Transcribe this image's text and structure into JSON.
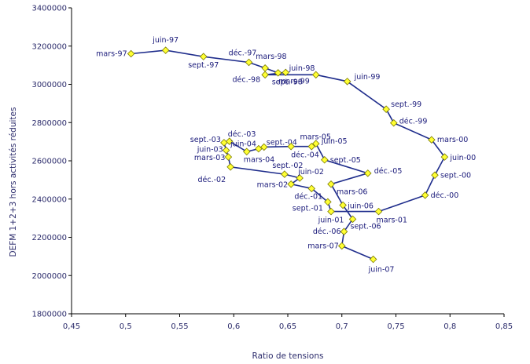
{
  "chart_data": {
    "type": "scatter",
    "xlabel": "Ratio de tensions",
    "ylabel": "DEFM 1+2+3 hors activités réduites",
    "xlim": [
      0.45,
      0.85
    ],
    "ylim": [
      1800000,
      3400000
    ],
    "x_ticks": [
      "0,45",
      "0,5",
      "0,55",
      "0,6",
      "0,65",
      "0,7",
      "0,75",
      "0,8",
      "0,85"
    ],
    "y_ticks": [
      "1800000",
      "2000000",
      "2200000",
      "2400000",
      "2600000",
      "2800000",
      "3000000",
      "3200000",
      "3400000"
    ],
    "grid": false,
    "colors": {
      "line": "#1f2d8c",
      "marker_fill": "#ffff33",
      "marker_stroke": "#7a7a00",
      "text": "#1a1a7a"
    },
    "points": [
      {
        "label": "mars-97",
        "x": 0.505,
        "y": 3160000
      },
      {
        "label": "juin-97",
        "x": 0.537,
        "y": 3178000
      },
      {
        "label": "sept.-97",
        "x": 0.572,
        "y": 3145000
      },
      {
        "label": "déc.-97",
        "x": 0.614,
        "y": 3115000
      },
      {
        "label": "mars-98",
        "x": 0.629,
        "y": 3085000
      },
      {
        "label": "juin-98",
        "x": 0.641,
        "y": 3060000
      },
      {
        "label": "sept.-98",
        "x": 0.648,
        "y": 3062000
      },
      {
        "label": "déc.-98",
        "x": 0.629,
        "y": 3050000
      },
      {
        "label": "mars-99",
        "x": 0.676,
        "y": 3050000
      },
      {
        "label": "juin-99",
        "x": 0.705,
        "y": 3015000
      },
      {
        "label": "sept.-99",
        "x": 0.741,
        "y": 2870000
      },
      {
        "label": "déc.-99",
        "x": 0.748,
        "y": 2798000
      },
      {
        "label": "mars-00",
        "x": 0.783,
        "y": 2710000
      },
      {
        "label": "juin-00",
        "x": 0.795,
        "y": 2620000
      },
      {
        "label": "sept.-00",
        "x": 0.786,
        "y": 2525000
      },
      {
        "label": "déc.-00",
        "x": 0.777,
        "y": 2420000
      },
      {
        "label": "mars-01",
        "x": 0.734,
        "y": 2335000
      },
      {
        "label": "juin-01",
        "x": 0.69,
        "y": 2335000
      },
      {
        "label": "sept.-01",
        "x": 0.687,
        "y": 2385000
      },
      {
        "label": "déc.-01",
        "x": 0.672,
        "y": 2455000
      },
      {
        "label": "mars-02",
        "x": 0.653,
        "y": 2478000
      },
      {
        "label": "juin-02",
        "x": 0.661,
        "y": 2510000
      },
      {
        "label": "sept.-02",
        "x": 0.647,
        "y": 2530000
      },
      {
        "label": "déc.-02",
        "x": 0.597,
        "y": 2568000
      },
      {
        "label": "mars-03",
        "x": 0.595,
        "y": 2620000
      },
      {
        "label": "juin-03",
        "x": 0.593,
        "y": 2655000
      },
      {
        "label": "sept.-03",
        "x": 0.591,
        "y": 2695000
      },
      {
        "label": "déc.-03",
        "x": 0.596,
        "y": 2702000
      },
      {
        "label": "mars-04",
        "x": 0.612,
        "y": 2648000
      },
      {
        "label": "juin-04",
        "x": 0.623,
        "y": 2663000
      },
      {
        "label": "sept.-04",
        "x": 0.628,
        "y": 2672000
      },
      {
        "label": "déc.-04",
        "x": 0.653,
        "y": 2675000
      },
      {
        "label": "mars-05",
        "x": 0.672,
        "y": 2675000
      },
      {
        "label": "juin-05",
        "x": 0.676,
        "y": 2690000
      },
      {
        "label": "sept.-05",
        "x": 0.684,
        "y": 2605000
      },
      {
        "label": "déc.-05",
        "x": 0.724,
        "y": 2535000
      },
      {
        "label": "mars-06",
        "x": 0.69,
        "y": 2478000
      },
      {
        "label": "juin-06",
        "x": 0.701,
        "y": 2368000
      },
      {
        "label": "sept.-06",
        "x": 0.71,
        "y": 2295000
      },
      {
        "label": "déc.-06",
        "x": 0.702,
        "y": 2230000
      },
      {
        "label": "mars-07",
        "x": 0.7,
        "y": 2155000
      },
      {
        "label": "juin-07",
        "x": 0.729,
        "y": 2085000
      }
    ]
  }
}
